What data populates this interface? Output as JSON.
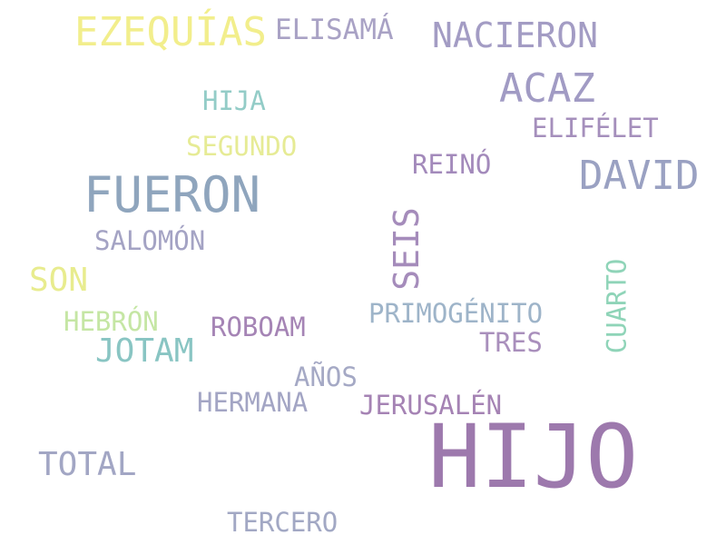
{
  "words": [
    {
      "text": "HIJO",
      "color": "#9d79ad"
    },
    {
      "text": "FUERON",
      "color": "#8fa5bd"
    },
    {
      "text": "EZEQUÍAS",
      "color": "#f2ee8c"
    },
    {
      "text": "DAVID",
      "color": "#9aa1c2"
    },
    {
      "text": "ACAZ",
      "color": "#a19bc4"
    },
    {
      "text": "NACIERON",
      "color": "#a39cc4"
    },
    {
      "text": "ELISAMÁ",
      "color": "#a9a2c5"
    },
    {
      "text": "SEIS",
      "color": "#a58cbb"
    },
    {
      "text": "SON",
      "color": "#e8ec8e"
    },
    {
      "text": "JOTAM",
      "color": "#89c5c3"
    },
    {
      "text": "TOTAL",
      "color": "#a2a6c4"
    },
    {
      "text": "HIJA",
      "color": "#93ccc7"
    },
    {
      "text": "SEGUNDO",
      "color": "#e6eb95"
    },
    {
      "text": "ELIFÉLET",
      "color": "#a58fbc"
    },
    {
      "text": "REINÓ",
      "color": "#a38abb"
    },
    {
      "text": "SALOMÓN",
      "color": "#a4a3c4"
    },
    {
      "text": "HEBRÓN",
      "color": "#c5e6a4"
    },
    {
      "text": "ROBOAM",
      "color": "#a584b5"
    },
    {
      "text": "PRIMOGÉNITO",
      "color": "#9eb4c9"
    },
    {
      "text": "CUARTO",
      "color": "#8fd4b8"
    },
    {
      "text": "TRES",
      "color": "#a98fbc"
    },
    {
      "text": "AÑOS",
      "color": "#a5a9c5"
    },
    {
      "text": "HERMANA",
      "color": "#a3a5c4"
    },
    {
      "text": "JERUSALÉN",
      "color": "#a583b4"
    },
    {
      "text": "TERCERO",
      "color": "#a2a8c4"
    }
  ]
}
